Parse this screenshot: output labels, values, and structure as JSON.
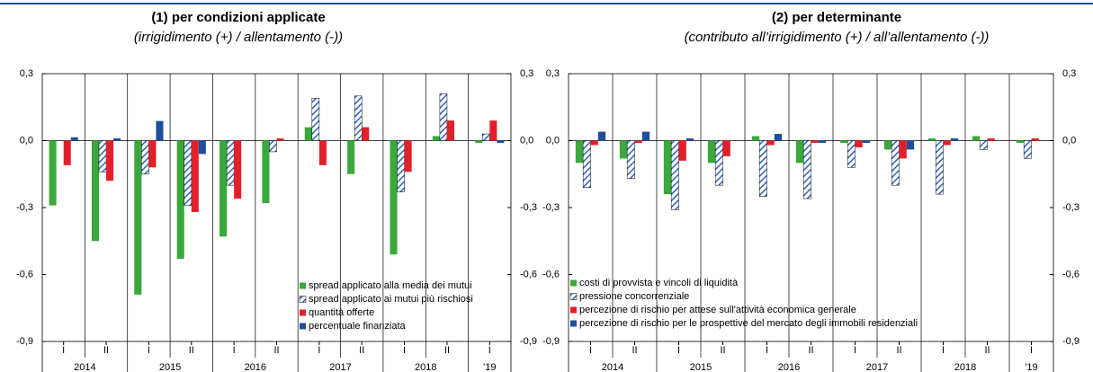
{
  "chart_data": [
    {
      "type": "bar",
      "title": "(1) per condizioni applicate",
      "subtitle": "(irrigidimento (+) / allentamento (-))",
      "categories": [
        "I",
        "II",
        "I",
        "II",
        "I",
        "II",
        "I",
        "II",
        "I",
        "II",
        "I"
      ],
      "year_labels": [
        "2014",
        "2015",
        "2016",
        "2017",
        "2018",
        "'19"
      ],
      "ylim": [
        -0.9,
        0.3
      ],
      "yticks": [
        {
          "value": -0.9,
          "label": "-0,9"
        },
        {
          "value": -0.6,
          "label": "-0,6"
        },
        {
          "value": -0.3,
          "label": "-0,3"
        },
        {
          "value": 0,
          "label": "0,0"
        },
        {
          "value": 0.3,
          "label": "0,3"
        }
      ],
      "legend": "lower right",
      "series": [
        {
          "name": "spread applicato alla media dei mutui",
          "color": "#3aa83a",
          "values": [
            -0.29,
            -0.45,
            -0.69,
            -0.53,
            -0.43,
            -0.28,
            0.06,
            -0.15,
            -0.51,
            0.02,
            -0.01
          ]
        },
        {
          "name": "spread applicato ai mutui più rischiosi",
          "color": "#2e62b8",
          "hatch": true,
          "values": [
            0,
            -0.14,
            -0.15,
            -0.29,
            -0.2,
            -0.05,
            0.19,
            0.2,
            -0.23,
            0.21,
            0.03
          ]
        },
        {
          "name": "quantità offerte",
          "color": "#e3202a",
          "values": [
            -0.11,
            -0.18,
            -0.12,
            -0.32,
            -0.26,
            0.01,
            -0.11,
            0.06,
            -0.14,
            0.09,
            0.09
          ]
        },
        {
          "name": "percentuale finanziata",
          "color": "#1f4e9c",
          "values": [
            0.015,
            0.01,
            0.088,
            -0.06,
            0,
            0,
            0,
            0,
            0,
            0,
            -0.01
          ]
        }
      ]
    },
    {
      "type": "bar",
      "title": "(2) per determinante",
      "subtitle": "(contributo all’irrigidimento (+) / all’allentamento (-))",
      "categories": [
        "I",
        "II",
        "I",
        "II",
        "I",
        "II",
        "I",
        "II",
        "I",
        "II",
        "I"
      ],
      "year_labels": [
        "2014",
        "2015",
        "2016",
        "2017",
        "2018",
        "'19"
      ],
      "ylim": [
        -0.9,
        0.3
      ],
      "yticks": [
        {
          "value": -0.9,
          "label": "-0,9"
        },
        {
          "value": -0.6,
          "label": "-0,6"
        },
        {
          "value": -0.3,
          "label": "-0,3"
        },
        {
          "value": 0,
          "label": "0,0"
        },
        {
          "value": 0.3,
          "label": "0,3"
        }
      ],
      "legend": "lower left",
      "series": [
        {
          "name": "costi di provvista e vincoli di liquidità",
          "color": "#3aa83a",
          "values": [
            -0.1,
            -0.08,
            -0.24,
            -0.1,
            0.02,
            -0.1,
            -0.01,
            -0.04,
            0.01,
            0.02,
            -0.01
          ]
        },
        {
          "name": "pressione concorrenziale",
          "color": "#2e62b8",
          "hatch": true,
          "values": [
            -0.21,
            -0.17,
            -0.31,
            -0.2,
            -0.25,
            -0.26,
            -0.12,
            -0.2,
            -0.24,
            -0.04,
            -0.08
          ]
        },
        {
          "name": "percezione di rischio per attese sull'attività economica generale",
          "color": "#e3202a",
          "values": [
            -0.02,
            -0.01,
            -0.09,
            -0.07,
            -0.02,
            -0.01,
            -0.03,
            -0.08,
            -0.02,
            0.01,
            0.01
          ]
        },
        {
          "name": "percezione di rischio per le prospettive del mercato degli immobili residenziali",
          "color": "#1f4e9c",
          "values": [
            0.04,
            0.04,
            0.01,
            0,
            0.03,
            -0.01,
            -0.01,
            -0.04,
            0.01,
            0,
            0
          ]
        }
      ]
    }
  ]
}
